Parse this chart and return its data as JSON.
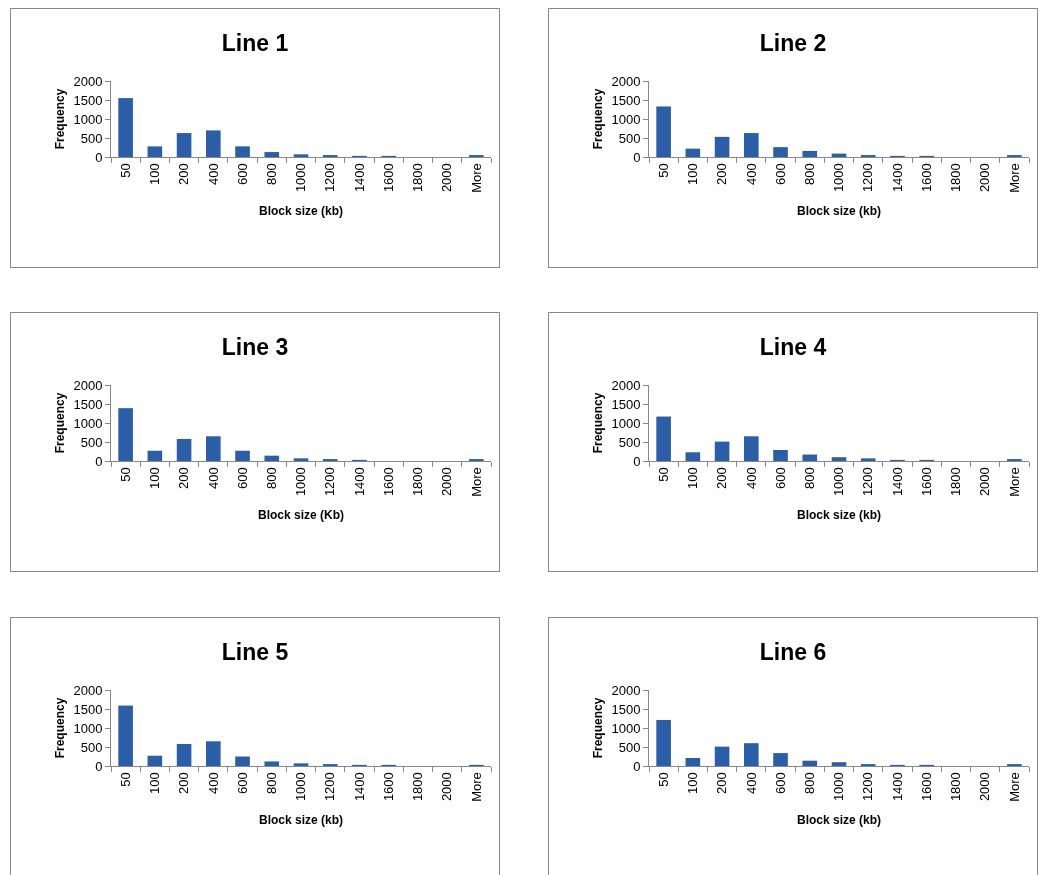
{
  "chart_data": [
    {
      "type": "bar",
      "title": "Line 1",
      "xlabel": "Block size (kb)",
      "ylabel": "Frequency",
      "categories": [
        "50",
        "100",
        "200",
        "400",
        "600",
        "800",
        "1000",
        "1200",
        "1400",
        "1600",
        "1800",
        "2000",
        "More"
      ],
      "values": [
        1550,
        280,
        630,
        700,
        280,
        130,
        70,
        50,
        30,
        30,
        0,
        0,
        50
      ],
      "color": "#2a5ea8",
      "ylim": [
        0,
        2000
      ],
      "yticks": [
        0,
        500,
        1000,
        1500,
        2000
      ]
    },
    {
      "type": "bar",
      "title": "Line 2",
      "xlabel": "Block size (kb)",
      "ylabel": "Frequency",
      "categories": [
        "50",
        "100",
        "200",
        "400",
        "600",
        "800",
        "1000",
        "1200",
        "1400",
        "1600",
        "1800",
        "2000",
        "More"
      ],
      "values": [
        1330,
        220,
        530,
        630,
        260,
        160,
        90,
        50,
        30,
        30,
        0,
        0,
        50
      ],
      "color": "#2a5ea8",
      "ylim": [
        0,
        2000
      ],
      "yticks": [
        0,
        500,
        1000,
        1500,
        2000
      ]
    },
    {
      "type": "bar",
      "title": "Line 3",
      "xlabel": "Block size (Kb)",
      "ylabel": "Frequency",
      "categories": [
        "50",
        "100",
        "200",
        "400",
        "600",
        "800",
        "1000",
        "1200",
        "1400",
        "1600",
        "1800",
        "2000",
        "More"
      ],
      "values": [
        1390,
        270,
        580,
        650,
        270,
        140,
        70,
        50,
        30,
        0,
        0,
        0,
        50
      ],
      "color": "#2a5ea8",
      "ylim": [
        0,
        2000
      ],
      "yticks": [
        0,
        500,
        1000,
        1500,
        2000
      ]
    },
    {
      "type": "bar",
      "title": "Line 4",
      "xlabel": "Block size (kb)",
      "ylabel": "Frequency",
      "categories": [
        "50",
        "100",
        "200",
        "400",
        "600",
        "800",
        "1000",
        "1200",
        "1400",
        "1600",
        "1800",
        "2000",
        "More"
      ],
      "values": [
        1170,
        230,
        510,
        650,
        290,
        170,
        100,
        70,
        30,
        30,
        0,
        0,
        50
      ],
      "color": "#2a5ea8",
      "ylim": [
        0,
        2000
      ],
      "yticks": [
        0,
        500,
        1000,
        1500,
        2000
      ]
    },
    {
      "type": "bar",
      "title": "Line 5",
      "xlabel": "Block size (kb)",
      "ylabel": "Frequency",
      "categories": [
        "50",
        "100",
        "200",
        "400",
        "600",
        "800",
        "1000",
        "1200",
        "1400",
        "1600",
        "1800",
        "2000",
        "More"
      ],
      "values": [
        1590,
        270,
        580,
        650,
        250,
        120,
        70,
        50,
        30,
        30,
        0,
        0,
        30
      ],
      "color": "#2a5ea8",
      "ylim": [
        0,
        2000
      ],
      "yticks": [
        0,
        500,
        1000,
        1500,
        2000
      ]
    },
    {
      "type": "bar",
      "title": "Line 6",
      "xlabel": "Block size (kb)",
      "ylabel": "Frequency",
      "categories": [
        "50",
        "100",
        "200",
        "400",
        "600",
        "800",
        "1000",
        "1200",
        "1400",
        "1600",
        "1800",
        "2000",
        "More"
      ],
      "values": [
        1210,
        210,
        510,
        600,
        340,
        140,
        100,
        50,
        30,
        30,
        0,
        0,
        50
      ],
      "color": "#2a5ea8",
      "ylim": [
        0,
        2000
      ],
      "yticks": [
        0,
        500,
        1000,
        1500,
        2000
      ]
    }
  ]
}
